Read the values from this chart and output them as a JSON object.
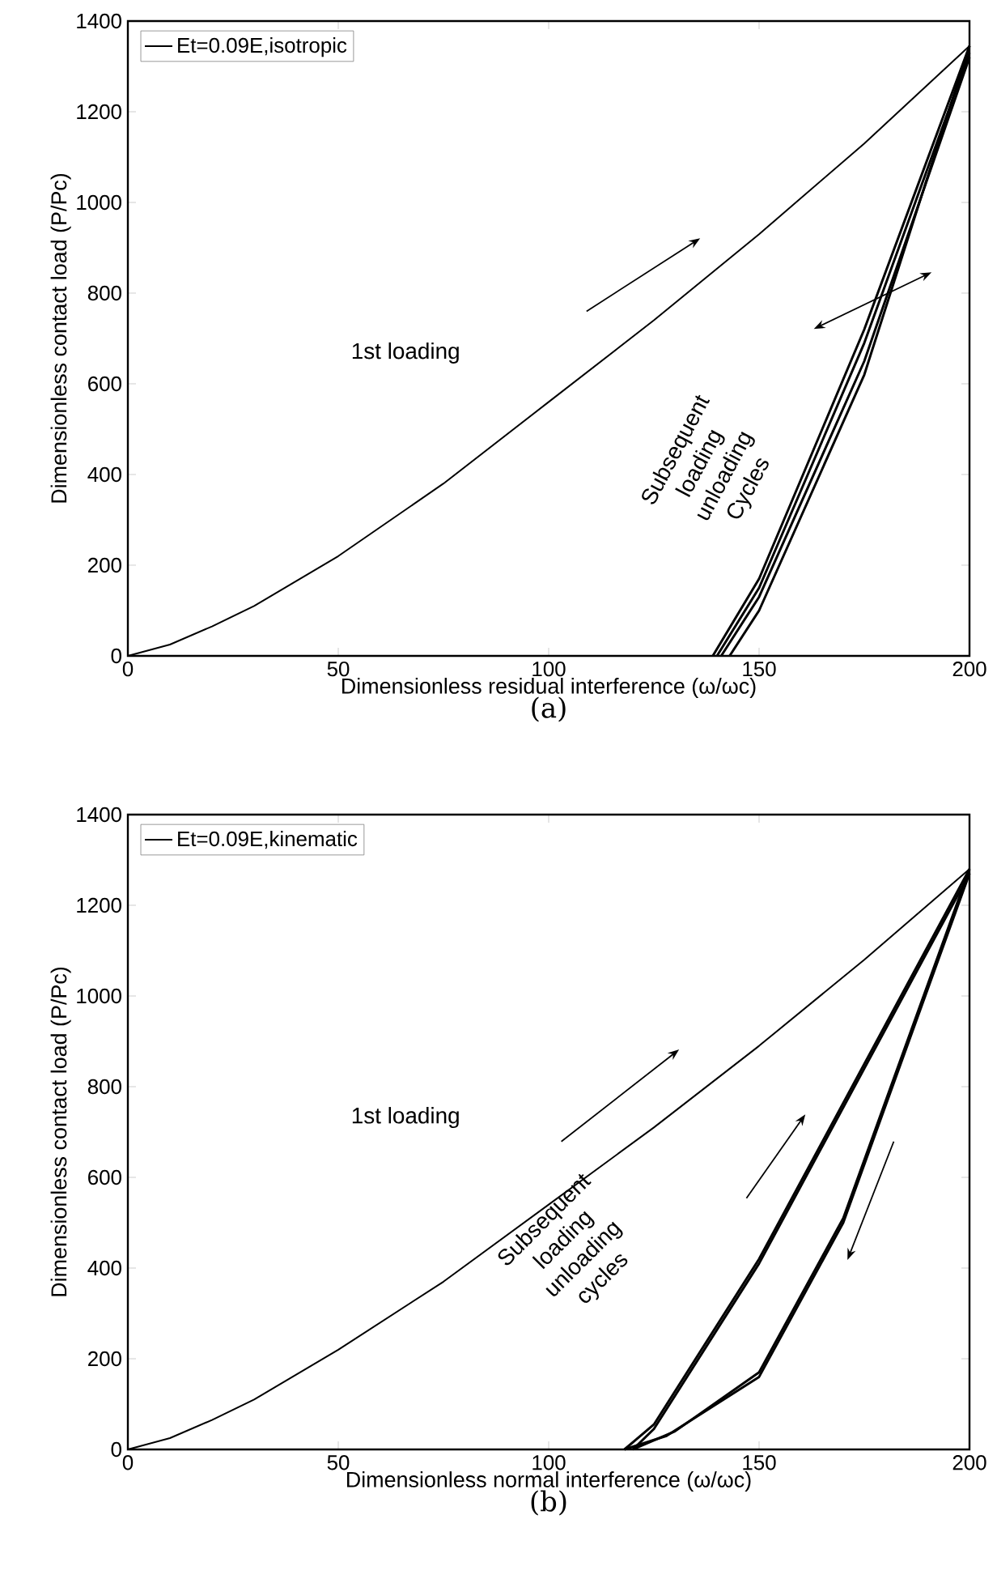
{
  "chart_data": [
    {
      "type": "line",
      "xlabel": "Dimensionless residual interference (ω/ωc)",
      "ylabel": "Dimensionless contact load (P/Pc)",
      "xlim": [
        0,
        200
      ],
      "ylim": [
        0,
        1400
      ],
      "xticks": [
        0,
        50,
        100,
        150,
        200
      ],
      "yticks": [
        0,
        200,
        400,
        600,
        800,
        1000,
        1200,
        1400
      ],
      "legend": "top left",
      "marker": "none",
      "line_style": "solid",
      "grid": false,
      "annotations": [
        "1st loading",
        "Subsequent loading unloading Cycles",
        "(a)"
      ],
      "series": [
        {
          "name": "Et=0.09E,isotropic",
          "color": "#000000",
          "x": [
            0,
            10,
            20,
            30,
            50,
            75,
            100,
            125,
            150,
            175,
            200
          ],
          "values": [
            0,
            25,
            65,
            110,
            220,
            380,
            560,
            740,
            930,
            1130,
            1345
          ]
        },
        {
          "color": "#000000",
          "x": [
            200,
            175,
            150,
            143
          ],
          "values": [
            1345,
            620,
            100,
            0
          ]
        },
        {
          "color": "#000000",
          "x": [
            139,
            150,
            175,
            200
          ],
          "values": [
            0,
            170,
            720,
            1345
          ]
        },
        {
          "color": "#000000",
          "x": [
            200,
            175,
            150,
            141
          ],
          "values": [
            1320,
            650,
            130,
            0
          ]
        },
        {
          "color": "#000000",
          "x": [
            140,
            150,
            175,
            200
          ],
          "values": [
            0,
            150,
            690,
            1330
          ]
        }
      ]
    },
    {
      "type": "line",
      "xlabel": "Dimensionless normal interference (ω/ωc)",
      "ylabel": "Dimensionless contact load (P/Pc)",
      "xlim": [
        0,
        200
      ],
      "ylim": [
        0,
        1400
      ],
      "xticks": [
        0,
        50,
        100,
        150,
        200
      ],
      "yticks": [
        0,
        200,
        400,
        600,
        800,
        1000,
        1200,
        1400
      ],
      "legend": "top left",
      "marker": "none",
      "line_style": "solid",
      "grid": false,
      "annotations": [
        "1st loading",
        "Subsequent loading unloading cycles",
        "(b)"
      ],
      "series": [
        {
          "name": "Et=0.09E,kinematic",
          "color": "#000000",
          "x": [
            0,
            10,
            20,
            30,
            50,
            75,
            100,
            125,
            150,
            175,
            200
          ],
          "values": [
            0,
            25,
            65,
            110,
            220,
            370,
            540,
            710,
            890,
            1080,
            1280
          ]
        },
        {
          "color": "#000000",
          "x": [
            118,
            125,
            150,
            175,
            200
          ],
          "values": [
            0,
            55,
            420,
            850,
            1280
          ]
        },
        {
          "color": "#000000",
          "x": [
            120,
            125,
            150,
            175,
            200
          ],
          "values": [
            0,
            45,
            410,
            840,
            1270
          ]
        },
        {
          "color": "#000000",
          "x": [
            200,
            170,
            150,
            130,
            120
          ],
          "values": [
            1280,
            510,
            170,
            40,
            0
          ]
        },
        {
          "color": "#000000",
          "x": [
            200,
            170,
            150,
            128,
            118
          ],
          "values": [
            1270,
            500,
            160,
            30,
            0
          ]
        }
      ]
    }
  ]
}
